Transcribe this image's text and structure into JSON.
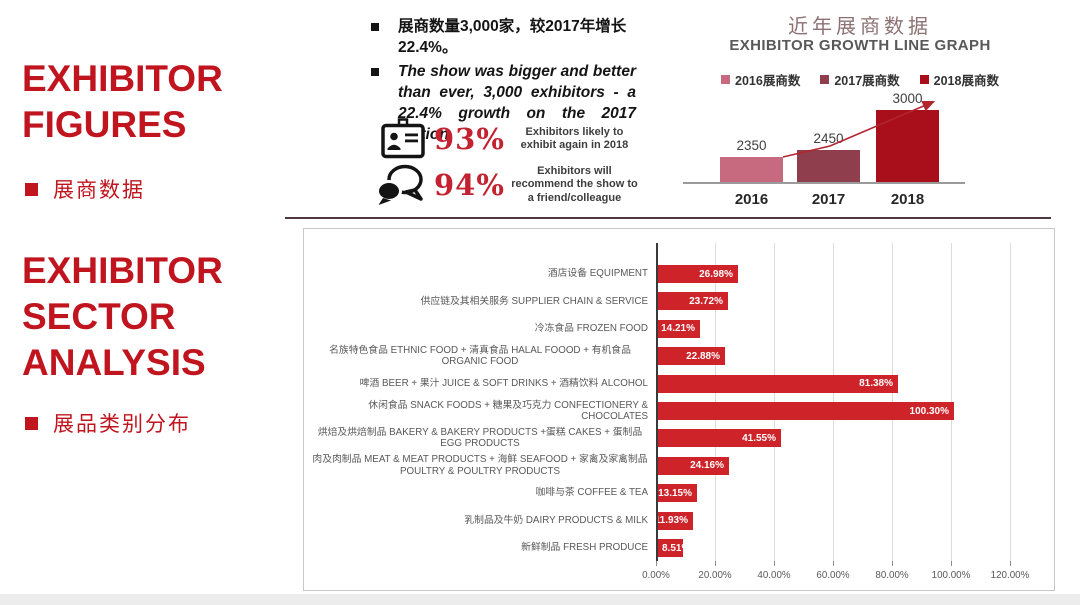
{
  "left_panel": {
    "accent_color": "#c0151f",
    "section1_title": "EXHIBITOR FIGURES",
    "section1_subtitle": "展商数据",
    "section2_title": "EXHIBITOR SECTOR ANALYSIS",
    "section2_subtitle": "展品类别分布"
  },
  "highlights": {
    "bullet_cn": "展商数量3,000家，较2017年增长22.4%。",
    "bullet_en": "The show was bigger and better than ever, 3,000 exhibitors - a 22.4% growth on the 2017 edition.",
    "stat_color": "#c32230",
    "stats": [
      {
        "icon": "id-badge-icon",
        "value": "93%",
        "label": "Exhibitors likely to exhibit again in 2018"
      },
      {
        "icon": "speech-bubbles-icon",
        "value": "94%",
        "label": "Exhibitors will recommend the show to a friend/colleague"
      }
    ]
  },
  "chart_data": [
    {
      "type": "bar",
      "title": "近年展商数据",
      "subtitle": "EXHIBITOR GROWTH LINE GRAPH",
      "categories": [
        "2016",
        "2017",
        "2018"
      ],
      "values": [
        2350,
        2450,
        3000
      ],
      "value_labels": [
        "2350",
        "2450",
        "3000"
      ],
      "legend": [
        {
          "label": "2016展商数",
          "color": "#c76a80"
        },
        {
          "label": "2017展商数",
          "color": "#8f3e4e"
        },
        {
          "label": "2018展商数",
          "color": "#a80f1a"
        }
      ],
      "legend_position": "top",
      "ylim": [
        2000,
        3000
      ],
      "grid": false,
      "trend_arrow": true
    },
    {
      "type": "bar",
      "orientation": "horizontal",
      "title": "",
      "categories": [
        "酒店设备 EQUIPMENT",
        "供应链及其相关服务 SUPPLIER CHAIN & SERVICE",
        "冷冻食品 FROZEN FOOD",
        "名族特色食品 ETHNIC FOOD + 清真食品 HALAL FOOOD + 有机食品 ORGANIC FOOD",
        "啤酒 BEER + 果汁 JUICE & SOFT DRINKS + 酒精饮料 ALCOHOL",
        "休闲食品 SNACK FOODS + 糖果及巧克力 CONFECTIONERY & CHOCOLATES",
        "烘焙及烘焙制品 BAKERY & BAKERY PRODUCTS +蛋糕 CAKES + 蛋制品 EGG PRODUCTS",
        "肉及肉制品 MEAT & MEAT PRODUCTS + 海鲜 SEAFOOD + 家禽及家禽制品 POULTRY & POULTRY PRODUCTS",
        "咖啡与茶 COFFEE & TEA",
        "乳制品及牛奶 DAIRY PRODUCTS & MILK",
        "新鲜制品 FRESH PRODUCE"
      ],
      "values": [
        26.98,
        23.72,
        14.21,
        22.88,
        81.38,
        100.3,
        41.55,
        24.16,
        13.15,
        11.93,
        8.51
      ],
      "value_labels": [
        "26.98%",
        "23.72%",
        "14.21%",
        "22.88%",
        "81.38%",
        "100.30%",
        "41.55%",
        "24.16%",
        "13.15%",
        "11.93%",
        "8.51%"
      ],
      "two_line_rows": [
        3,
        6,
        7
      ],
      "xticks": [
        "0.00%",
        "20.00%",
        "40.00%",
        "60.00%",
        "80.00%",
        "100.00%",
        "120.00%"
      ],
      "xlim": [
        0,
        120
      ],
      "grid": true,
      "bar_color": "#cd2329",
      "label_color": "#595959"
    }
  ]
}
